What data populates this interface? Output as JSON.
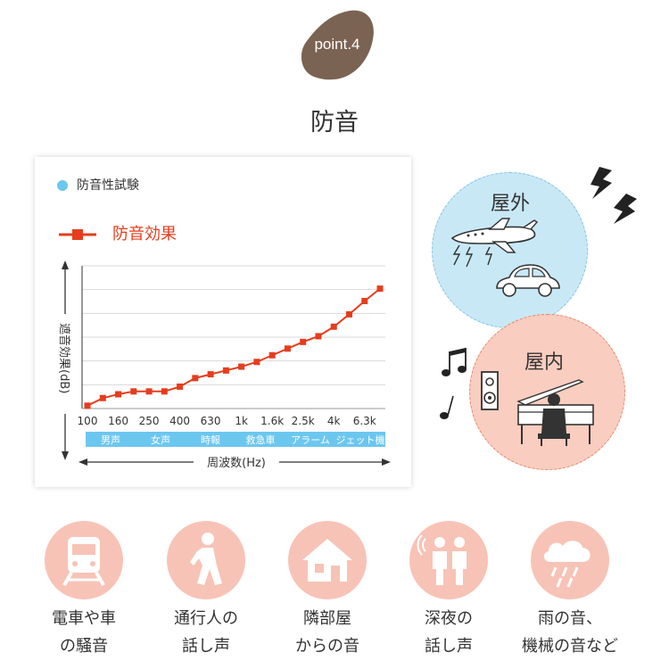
{
  "badge": {
    "label": "point.4"
  },
  "heading": "防音",
  "legend": {
    "test_label": "防音性試験",
    "effect_label": "防音効果"
  },
  "colors": {
    "accent": "#e53d1e",
    "band": "#6cc7ef",
    "badge": "#7b6353",
    "outdoor": "#c9e8f6",
    "indoor": "#f9cdbf",
    "category_circle": "#f7c3b6"
  },
  "chart_data": {
    "type": "line",
    "x": [
      "100",
      "125",
      "160",
      "200",
      "250",
      "315",
      "400",
      "500",
      "630",
      "800",
      "1k",
      "1.25k",
      "1.6k",
      "2k",
      "2.5k",
      "3.15k",
      "4k",
      "5k",
      "6.3k",
      "8k"
    ],
    "x_tick_labels": [
      "100",
      "160",
      "250",
      "400",
      "630",
      "1k",
      "1.6k",
      "2.5k",
      "4k",
      "6.3k"
    ],
    "series": [
      {
        "name": "防音効果",
        "values": [
          0.3,
          1.1,
          1.5,
          1.8,
          1.8,
          1.8,
          2.3,
          3.2,
          3.6,
          4.0,
          4.4,
          4.9,
          5.6,
          6.3,
          7.0,
          7.6,
          8.6,
          9.9,
          11.3,
          12.6
        ]
      }
    ],
    "ylabel": "遮音効果(dB)",
    "xlabel": "周波数(Hz)",
    "ylim": [
      0,
      15
    ],
    "grid": true,
    "source_bands": [
      "男声",
      "女声",
      "時報",
      "救急車",
      "アラーム",
      "ジェット機"
    ]
  },
  "scene": {
    "outdoor_label": "屋外",
    "indoor_label": "屋内"
  },
  "categories": [
    {
      "icon": "train-icon",
      "line1": "電車や車",
      "line2": "の騒音"
    },
    {
      "icon": "walking-person-icon",
      "line1": "通行人の",
      "line2": "話し声"
    },
    {
      "icon": "house-icon",
      "line1": "隣部屋",
      "line2": "からの音"
    },
    {
      "icon": "talking-people-icon",
      "line1": "深夜の",
      "line2": "話し声"
    },
    {
      "icon": "rain-cloud-icon",
      "line1": "雨の音、",
      "line2": "機械の音など"
    }
  ]
}
